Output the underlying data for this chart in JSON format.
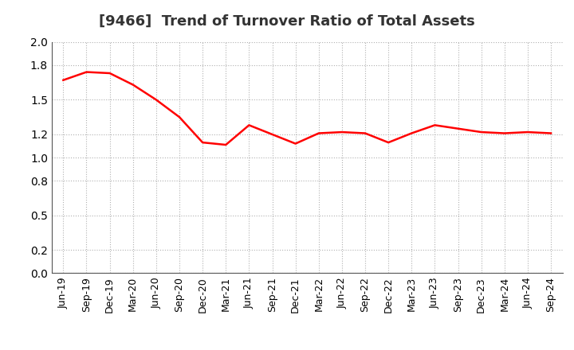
{
  "title": "[9466]  Trend of Turnover Ratio of Total Assets",
  "x_labels": [
    "Jun-19",
    "Sep-19",
    "Dec-19",
    "Mar-20",
    "Jun-20",
    "Sep-20",
    "Dec-20",
    "Mar-21",
    "Jun-21",
    "Sep-21",
    "Dec-21",
    "Mar-22",
    "Jun-22",
    "Sep-22",
    "Dec-22",
    "Mar-23",
    "Jun-23",
    "Sep-23",
    "Dec-23",
    "Mar-24",
    "Jun-24",
    "Sep-24"
  ],
  "values": [
    1.67,
    1.74,
    1.73,
    1.63,
    1.5,
    1.35,
    1.13,
    1.11,
    1.28,
    1.2,
    1.12,
    1.21,
    1.22,
    1.21,
    1.13,
    1.21,
    1.28,
    1.25,
    1.22,
    1.21,
    1.22,
    1.21
  ],
  "line_color": "#ff0000",
  "line_width": 1.8,
  "ylim": [
    0.0,
    2.0
  ],
  "yticks": [
    0.0,
    0.2,
    0.5,
    0.8,
    1.0,
    1.2,
    1.5,
    1.8,
    2.0
  ],
  "background_color": "#ffffff",
  "grid_color": "#b0b0b0",
  "title_fontsize": 13,
  "tick_fontsize": 10,
  "title_color": "#333333"
}
